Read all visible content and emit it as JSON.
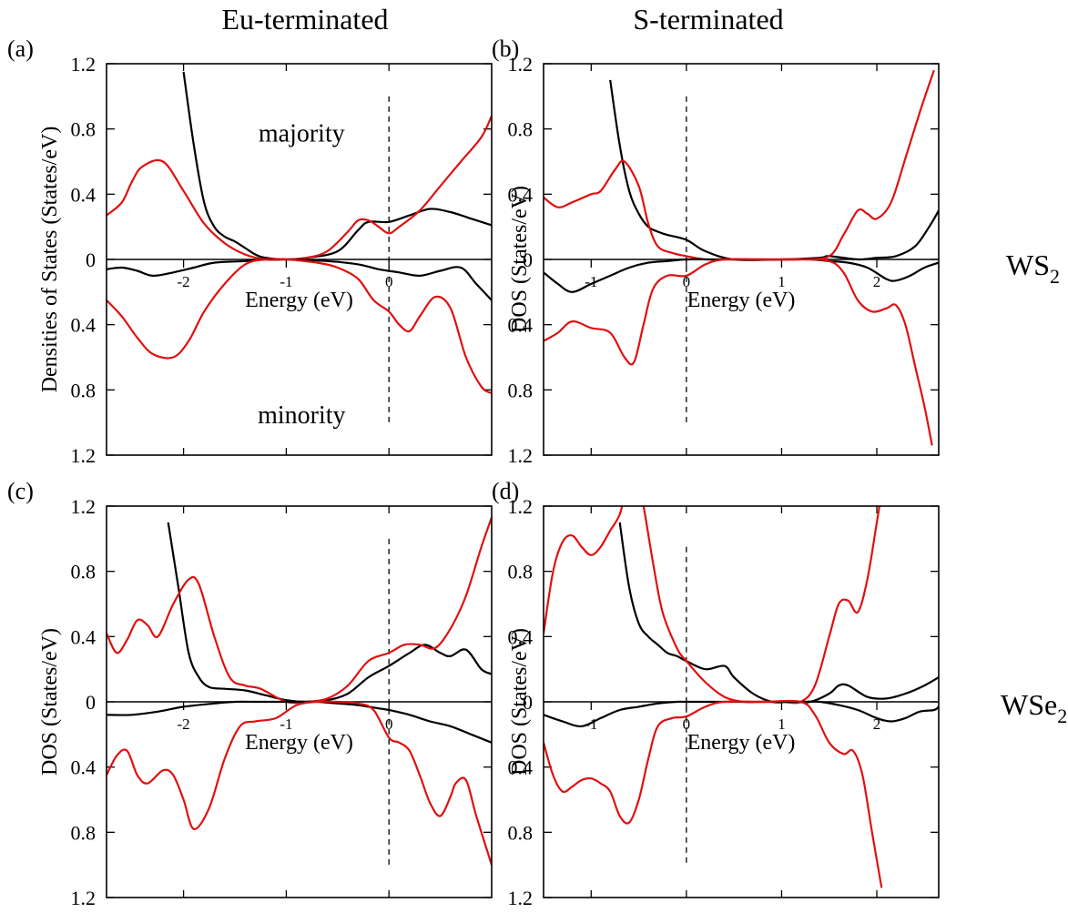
{
  "figure": {
    "column_titles": [
      "Eu-terminated",
      "S-terminated"
    ],
    "row_labels": [
      {
        "main": "WS",
        "sub": "2"
      },
      {
        "main": "WSe",
        "sub": "2"
      }
    ]
  },
  "chart_data": [
    {
      "type": "line",
      "panel_label": "(a)",
      "xlabel": "Energy (eV)",
      "ylabel": "Densities of States (States/eV)",
      "xlim": [
        -2.75,
        1.0
      ],
      "ylim": [
        -1.2,
        1.2
      ],
      "x_ticks": [
        -2,
        -1,
        0
      ],
      "x_tick_labels": [
        "-2",
        "-1",
        "0"
      ],
      "y_ticks": [
        1.2,
        0.8,
        0.4,
        0,
        -0.4,
        -0.8,
        -1.2
      ],
      "y_tick_labels": [
        "1.2",
        "0.8",
        "0.4",
        "0",
        "0.4",
        "0.8",
        "1.2"
      ],
      "fermi_level": 0,
      "fermi_line_range": [
        -1.0,
        1.0
      ],
      "annotations": [
        {
          "text": "majority",
          "x": -0.85,
          "y": 0.78
        },
        {
          "text": "minority",
          "x": -0.85,
          "y": -0.95
        }
      ],
      "series": [
        {
          "color": "#000000",
          "x": [
            -2.0,
            -1.9,
            -1.8,
            -1.7,
            -1.6,
            -1.5,
            -1.4,
            -1.3,
            -1.2,
            -1.0,
            -0.8,
            -0.5,
            -0.3,
            -0.2,
            0.0,
            0.2,
            0.4,
            0.6,
            0.8,
            1.0
          ],
          "y": [
            1.15,
            0.7,
            0.35,
            0.2,
            0.14,
            0.11,
            0.07,
            0.03,
            0.01,
            0.0,
            0.01,
            0.05,
            0.18,
            0.23,
            0.23,
            0.27,
            0.31,
            0.29,
            0.25,
            0.21
          ]
        },
        {
          "color": "#e01010",
          "x": [
            -2.75,
            -2.6,
            -2.5,
            -2.4,
            -2.2,
            -2.0,
            -1.8,
            -1.6,
            -1.4,
            -1.2,
            -1.0,
            -0.8,
            -0.6,
            -0.4,
            -0.3,
            -0.2,
            -0.1,
            0.0,
            0.1,
            0.3,
            0.5,
            0.7,
            0.9,
            1.0
          ],
          "y": [
            0.27,
            0.35,
            0.48,
            0.57,
            0.6,
            0.42,
            0.22,
            0.1,
            0.03,
            0.0,
            0.0,
            0.01,
            0.05,
            0.17,
            0.24,
            0.24,
            0.2,
            0.16,
            0.2,
            0.3,
            0.45,
            0.6,
            0.75,
            0.88
          ]
        },
        {
          "color": "#000000",
          "x": [
            -2.75,
            -2.6,
            -2.45,
            -2.3,
            -2.1,
            -1.9,
            -1.7,
            -1.4,
            -1.2,
            -1.0,
            -0.6,
            -0.3,
            -0.1,
            0.1,
            0.3,
            0.5,
            0.7,
            0.85,
            1.0
          ],
          "y": [
            -0.06,
            -0.05,
            -0.07,
            -0.1,
            -0.08,
            -0.05,
            -0.02,
            -0.01,
            0.0,
            0.0,
            -0.01,
            -0.03,
            -0.06,
            -0.08,
            -0.1,
            -0.07,
            -0.05,
            -0.15,
            -0.25
          ]
        },
        {
          "color": "#e01010",
          "x": [
            -2.75,
            -2.6,
            -2.45,
            -2.3,
            -2.1,
            -1.95,
            -1.8,
            -1.6,
            -1.4,
            -1.2,
            -1.0,
            -0.7,
            -0.5,
            -0.3,
            -0.15,
            0.0,
            0.1,
            0.2,
            0.3,
            0.45,
            0.6,
            0.75,
            0.9,
            1.0
          ],
          "y": [
            -0.25,
            -0.35,
            -0.48,
            -0.58,
            -0.6,
            -0.5,
            -0.32,
            -0.15,
            -0.03,
            0.0,
            0.0,
            -0.02,
            -0.05,
            -0.12,
            -0.25,
            -0.32,
            -0.4,
            -0.44,
            -0.35,
            -0.23,
            -0.3,
            -0.6,
            -0.78,
            -0.82
          ]
        }
      ]
    },
    {
      "type": "line",
      "panel_label": "(b)",
      "xlabel": "Energy (eV)",
      "ylabel": "DOS (States/eV)",
      "xlim": [
        -1.5,
        2.65
      ],
      "ylim": [
        -1.2,
        1.2
      ],
      "x_ticks": [
        -1,
        0,
        1,
        2
      ],
      "x_tick_labels": [
        "-1",
        "0",
        "1",
        "2"
      ],
      "y_ticks": [
        1.2,
        0.8,
        0.4,
        0,
        -0.4,
        -0.8,
        -1.2
      ],
      "y_tick_labels": [
        "1.2",
        "0.8",
        "0.4",
        "0",
        "0.4",
        "0.8",
        "1.2"
      ],
      "fermi_level": 0,
      "fermi_line_range": [
        -1.0,
        1.0
      ],
      "series": [
        {
          "color": "#000000",
          "x": [
            -0.8,
            -0.7,
            -0.6,
            -0.5,
            -0.4,
            -0.3,
            -0.2,
            0.0,
            0.2,
            0.5,
            1.0,
            1.4,
            1.5,
            1.8,
            2.0,
            2.2,
            2.4,
            2.55,
            2.65
          ],
          "y": [
            1.1,
            0.7,
            0.42,
            0.28,
            0.2,
            0.17,
            0.15,
            0.12,
            0.05,
            0.0,
            0.0,
            0.01,
            0.02,
            0.0,
            0.01,
            0.02,
            0.08,
            0.2,
            0.3
          ]
        },
        {
          "color": "#e01010",
          "x": [
            -1.5,
            -1.35,
            -1.2,
            -1.0,
            -0.9,
            -0.75,
            -0.65,
            -0.5,
            -0.4,
            -0.3,
            -0.15,
            0.0,
            0.2,
            0.4,
            0.8,
            1.2,
            1.5,
            1.65,
            1.8,
            1.9,
            2.0,
            2.15,
            2.3,
            2.45,
            2.6
          ],
          "y": [
            0.38,
            0.32,
            0.35,
            0.4,
            0.42,
            0.55,
            0.6,
            0.45,
            0.22,
            0.08,
            0.04,
            0.02,
            0.0,
            0.0,
            0.0,
            0.0,
            0.02,
            0.15,
            0.3,
            0.28,
            0.25,
            0.35,
            0.62,
            0.9,
            1.16
          ]
        },
        {
          "color": "#000000",
          "x": [
            -1.5,
            -1.35,
            -1.2,
            -1.0,
            -0.8,
            -0.6,
            -0.4,
            -0.2,
            0.0,
            0.3,
            0.6,
            1.0,
            1.3,
            1.5,
            1.7,
            1.9,
            2.1,
            2.2,
            2.35,
            2.5,
            2.65
          ],
          "y": [
            -0.08,
            -0.15,
            -0.2,
            -0.15,
            -0.1,
            -0.05,
            -0.02,
            -0.01,
            0.0,
            0.0,
            0.0,
            0.0,
            0.0,
            -0.01,
            -0.02,
            -0.05,
            -0.12,
            -0.13,
            -0.1,
            -0.05,
            -0.02
          ]
        },
        {
          "color": "#e01010",
          "x": [
            -1.5,
            -1.35,
            -1.2,
            -1.0,
            -0.8,
            -0.65,
            -0.55,
            -0.45,
            -0.35,
            -0.2,
            0.0,
            0.2,
            0.4,
            0.8,
            1.2,
            1.5,
            1.65,
            1.8,
            1.95,
            2.1,
            2.2,
            2.3,
            2.4,
            2.5,
            2.58
          ],
          "y": [
            -0.5,
            -0.45,
            -0.38,
            -0.42,
            -0.45,
            -0.6,
            -0.63,
            -0.4,
            -0.18,
            -0.1,
            -0.1,
            -0.03,
            0.0,
            0.0,
            0.0,
            -0.01,
            -0.08,
            -0.25,
            -0.32,
            -0.3,
            -0.28,
            -0.4,
            -0.65,
            -0.9,
            -1.14
          ]
        }
      ]
    },
    {
      "type": "line",
      "panel_label": "(c)",
      "xlabel": "Energy (eV)",
      "ylabel": "DOS (States/eV)",
      "xlim": [
        -2.75,
        1.0
      ],
      "ylim": [
        -1.2,
        1.2
      ],
      "x_ticks": [
        -2,
        -1,
        0
      ],
      "x_tick_labels": [
        "-2",
        "-1",
        "0"
      ],
      "y_ticks": [
        1.2,
        0.8,
        0.4,
        0,
        -0.4,
        -0.8,
        -1.2
      ],
      "y_tick_labels": [
        "1.2",
        "0.8",
        "0.4",
        "0",
        "0.4",
        "0.8",
        "1.2"
      ],
      "fermi_level": 0,
      "fermi_line_range": [
        -1.0,
        1.0
      ],
      "series": [
        {
          "color": "#000000",
          "x": [
            -2.15,
            -2.05,
            -1.95,
            -1.85,
            -1.75,
            -1.6,
            -1.4,
            -1.2,
            -1.0,
            -0.8,
            -0.6,
            -0.4,
            -0.2,
            0.0,
            0.2,
            0.35,
            0.5,
            0.6,
            0.75,
            0.9,
            1.0
          ],
          "y": [
            1.1,
            0.7,
            0.3,
            0.15,
            0.09,
            0.08,
            0.07,
            0.04,
            0.01,
            0.0,
            0.01,
            0.05,
            0.15,
            0.22,
            0.3,
            0.35,
            0.3,
            0.28,
            0.32,
            0.2,
            0.17
          ]
        },
        {
          "color": "#e01010",
          "x": [
            -2.75,
            -2.65,
            -2.55,
            -2.45,
            -2.35,
            -2.25,
            -2.1,
            -1.95,
            -1.85,
            -1.7,
            -1.55,
            -1.4,
            -1.25,
            -1.0,
            -0.8,
            -0.6,
            -0.4,
            -0.2,
            0.0,
            0.15,
            0.3,
            0.45,
            0.6,
            0.75,
            0.9,
            1.0
          ],
          "y": [
            0.42,
            0.3,
            0.38,
            0.5,
            0.47,
            0.4,
            0.6,
            0.75,
            0.72,
            0.4,
            0.15,
            0.1,
            0.08,
            0.0,
            0.0,
            0.02,
            0.1,
            0.25,
            0.3,
            0.35,
            0.35,
            0.33,
            0.45,
            0.65,
            0.95,
            1.13
          ]
        },
        {
          "color": "#000000",
          "x": [
            -2.75,
            -2.5,
            -2.25,
            -2.0,
            -1.7,
            -1.5,
            -1.3,
            -1.1,
            -0.9,
            -0.7,
            -0.5,
            -0.3,
            -0.1,
            0.0,
            0.2,
            0.4,
            0.6,
            0.8,
            1.0
          ],
          "y": [
            -0.08,
            -0.08,
            -0.06,
            -0.03,
            -0.01,
            0.0,
            0.0,
            0.0,
            0.0,
            0.0,
            -0.01,
            -0.02,
            -0.04,
            -0.05,
            -0.08,
            -0.12,
            -0.15,
            -0.2,
            -0.25
          ]
        },
        {
          "color": "#e01010",
          "x": [
            -2.75,
            -2.65,
            -2.55,
            -2.45,
            -2.35,
            -2.2,
            -2.1,
            -2.0,
            -1.9,
            -1.75,
            -1.6,
            -1.45,
            -1.3,
            -1.1,
            -0.9,
            -0.7,
            -0.5,
            -0.3,
            -0.15,
            0.0,
            0.1,
            0.2,
            0.3,
            0.4,
            0.5,
            0.6,
            0.65,
            0.75,
            0.85,
            1.0
          ],
          "y": [
            -0.45,
            -0.33,
            -0.3,
            -0.45,
            -0.5,
            -0.42,
            -0.45,
            -0.6,
            -0.78,
            -0.65,
            -0.35,
            -0.15,
            -0.12,
            -0.1,
            -0.02,
            0.0,
            0.0,
            -0.01,
            -0.05,
            -0.22,
            -0.25,
            -0.3,
            -0.45,
            -0.62,
            -0.7,
            -0.58,
            -0.5,
            -0.48,
            -0.7,
            -1.0
          ]
        }
      ]
    },
    {
      "type": "line",
      "panel_label": "(d)",
      "xlabel": "Energy (eV)",
      "ylabel": "DOS (States/eV)",
      "xlim": [
        -1.5,
        2.65
      ],
      "ylim": [
        -1.2,
        1.2
      ],
      "x_ticks": [
        -1,
        0,
        1,
        2
      ],
      "x_tick_labels": [
        "-1",
        "0",
        "1",
        "2"
      ],
      "y_ticks": [
        1.2,
        0.8,
        0.4,
        0,
        -0.4,
        -0.8,
        -1.2
      ],
      "y_tick_labels": [
        "1.2",
        "0.8",
        "0.4",
        "0",
        "0.4",
        "0.8",
        "1.2"
      ],
      "fermi_level": 0,
      "fermi_line_range": [
        -1.0,
        0.95
      ],
      "series": [
        {
          "color": "#000000",
          "x": [
            -0.7,
            -0.6,
            -0.5,
            -0.4,
            -0.3,
            -0.2,
            -0.1,
            0.0,
            0.2,
            0.4,
            0.5,
            0.7,
            0.9,
            1.1,
            1.3,
            1.5,
            1.6,
            1.7,
            1.9,
            2.1,
            2.3,
            2.5,
            2.65
          ],
          "y": [
            1.1,
            0.7,
            0.48,
            0.4,
            0.35,
            0.3,
            0.28,
            0.25,
            0.2,
            0.22,
            0.15,
            0.05,
            0.0,
            0.0,
            0.0,
            0.05,
            0.1,
            0.1,
            0.03,
            0.02,
            0.05,
            0.1,
            0.15
          ]
        },
        {
          "color": "#e01010",
          "x": [
            -1.5,
            -1.4,
            -1.3,
            -1.2,
            -1.1,
            -1.0,
            -0.9,
            -0.8,
            -0.7,
            -0.6,
            -0.5,
            -0.45,
            -0.35,
            -0.25,
            -0.1,
            0.0,
            0.2,
            0.4,
            0.6,
            0.8,
            1.0,
            1.2,
            1.35,
            1.5,
            1.6,
            1.7,
            1.8,
            1.9,
            2.0,
            2.07
          ],
          "y": [
            0.42,
            0.8,
            0.98,
            1.02,
            0.95,
            0.9,
            0.95,
            1.05,
            1.15,
            1.35,
            1.3,
            1.2,
            0.85,
            0.55,
            0.33,
            0.25,
            0.12,
            0.03,
            0.0,
            0.0,
            0.0,
            0.0,
            0.1,
            0.4,
            0.6,
            0.62,
            0.55,
            0.75,
            1.1,
            1.35
          ]
        },
        {
          "color": "#000000",
          "x": [
            -1.5,
            -1.3,
            -1.1,
            -0.9,
            -0.7,
            -0.5,
            -0.3,
            -0.1,
            0.0,
            0.2,
            0.4,
            0.6,
            0.8,
            1.0,
            1.2,
            1.4,
            1.6,
            1.8,
            2.0,
            2.15,
            2.3,
            2.45,
            2.6,
            2.65
          ],
          "y": [
            -0.08,
            -0.12,
            -0.15,
            -0.1,
            -0.05,
            -0.03,
            -0.01,
            0.0,
            0.0,
            0.0,
            0.0,
            0.0,
            0.0,
            0.0,
            0.0,
            0.0,
            -0.02,
            -0.05,
            -0.1,
            -0.12,
            -0.1,
            -0.06,
            -0.05,
            -0.03
          ]
        },
        {
          "color": "#e01010",
          "x": [
            -1.5,
            -1.4,
            -1.3,
            -1.2,
            -1.1,
            -1.0,
            -0.9,
            -0.8,
            -0.7,
            -0.6,
            -0.5,
            -0.4,
            -0.3,
            -0.15,
            0.0,
            0.2,
            0.4,
            0.8,
            1.2,
            1.35,
            1.5,
            1.65,
            1.75,
            1.85,
            1.95,
            2.05
          ],
          "y": [
            -0.25,
            -0.45,
            -0.55,
            -0.52,
            -0.48,
            -0.47,
            -0.5,
            -0.55,
            -0.7,
            -0.74,
            -0.6,
            -0.35,
            -0.15,
            -0.1,
            -0.09,
            -0.03,
            0.0,
            0.0,
            0.0,
            -0.08,
            -0.25,
            -0.32,
            -0.3,
            -0.45,
            -0.8,
            -1.14
          ]
        }
      ]
    }
  ]
}
